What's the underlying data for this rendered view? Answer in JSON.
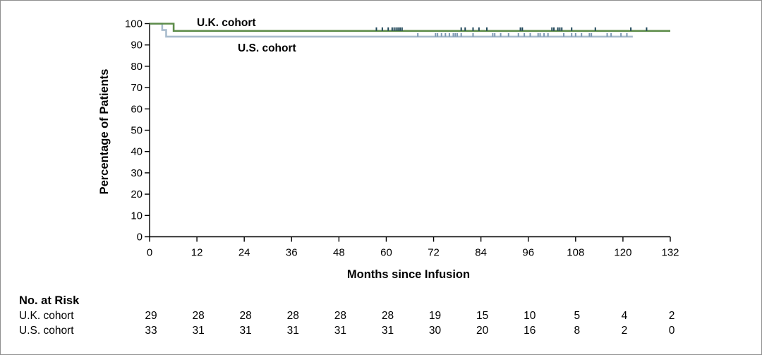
{
  "chart_data": {
    "type": "line",
    "subtype": "kaplan-meier",
    "title": "",
    "xlabel": "Months since Infusion",
    "ylabel": "Percentage of Patients",
    "xlim": [
      0,
      132
    ],
    "ylim": [
      0,
      100
    ],
    "xticks": [
      0,
      12,
      24,
      36,
      48,
      60,
      72,
      84,
      96,
      108,
      120,
      132
    ],
    "yticks": [
      0,
      10,
      20,
      30,
      40,
      50,
      60,
      70,
      80,
      90,
      100
    ],
    "grid": false,
    "series": [
      {
        "name": "U.K. cohort",
        "color": "#5e8d4a",
        "tick_color": "#1f4659",
        "steps": [
          [
            0,
            100
          ],
          [
            6.1,
            96.6
          ],
          [
            132,
            96.6
          ]
        ],
        "censored": [
          57.5,
          59,
          60.5,
          61.5,
          62,
          62.5,
          63,
          63.5,
          64,
          79,
          80,
          82,
          83.5,
          85.5,
          94,
          94.5,
          102,
          102.5,
          103.5,
          104,
          104.5,
          107,
          113,
          122,
          126
        ]
      },
      {
        "name": "U.S. cohort",
        "color": "#a9bccd",
        "tick_color": "#7d98b3",
        "steps": [
          [
            0,
            100
          ],
          [
            3.2,
            97
          ],
          [
            4.2,
            93.9
          ],
          [
            122.5,
            93.9
          ]
        ],
        "censored": [
          68,
          72.5,
          73,
          74,
          75,
          76,
          77,
          77.5,
          78,
          79,
          82,
          87,
          87.5,
          89,
          91,
          93.5,
          95,
          96.5,
          98.5,
          99,
          100,
          101,
          105,
          107,
          108,
          109.5,
          111.5,
          112,
          116,
          117,
          119.5,
          121
        ]
      }
    ],
    "at_risk": {
      "title": "No. at Risk",
      "rows": [
        {
          "label": "U.K. cohort",
          "values": [
            29,
            28,
            28,
            28,
            28,
            28,
            19,
            15,
            10,
            5,
            4,
            2
          ]
        },
        {
          "label": "U.S. cohort",
          "values": [
            33,
            31,
            31,
            31,
            31,
            31,
            30,
            20,
            16,
            8,
            2,
            0
          ]
        }
      ]
    }
  }
}
